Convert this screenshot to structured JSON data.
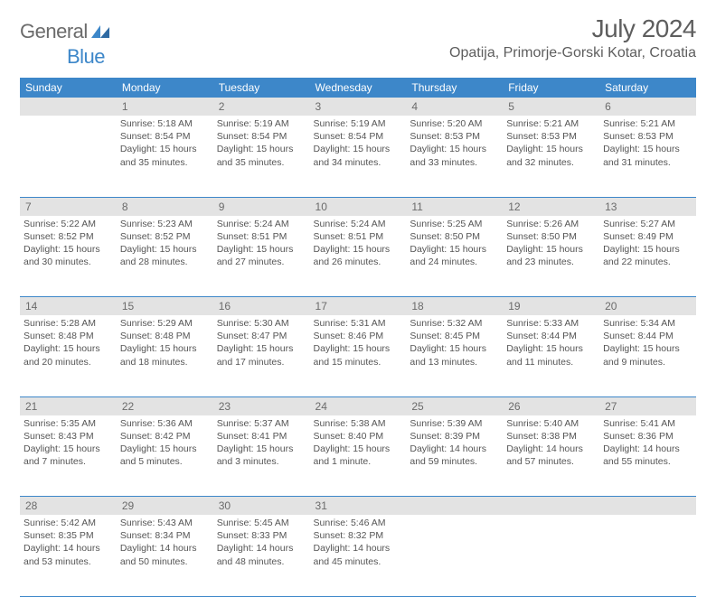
{
  "brand": {
    "word1": "General",
    "word2": "Blue"
  },
  "title": "July 2024",
  "location": "Opatija, Primorje-Gorski Kotar, Croatia",
  "colors": {
    "accent": "#3d87c9",
    "header_bg": "#3d87c9",
    "daynum_bg": "#e3e3e3",
    "text": "#555555",
    "subtle": "#6b6b6b"
  },
  "day_headers": [
    "Sunday",
    "Monday",
    "Tuesday",
    "Wednesday",
    "Thursday",
    "Friday",
    "Saturday"
  ],
  "weeks": [
    {
      "nums": [
        "",
        "1",
        "2",
        "3",
        "4",
        "5",
        "6"
      ],
      "cells": [
        {
          "sunrise": "",
          "sunset": "",
          "daylight": ""
        },
        {
          "sunrise": "Sunrise: 5:18 AM",
          "sunset": "Sunset: 8:54 PM",
          "daylight": "Daylight: 15 hours and 35 minutes."
        },
        {
          "sunrise": "Sunrise: 5:19 AM",
          "sunset": "Sunset: 8:54 PM",
          "daylight": "Daylight: 15 hours and 35 minutes."
        },
        {
          "sunrise": "Sunrise: 5:19 AM",
          "sunset": "Sunset: 8:54 PM",
          "daylight": "Daylight: 15 hours and 34 minutes."
        },
        {
          "sunrise": "Sunrise: 5:20 AM",
          "sunset": "Sunset: 8:53 PM",
          "daylight": "Daylight: 15 hours and 33 minutes."
        },
        {
          "sunrise": "Sunrise: 5:21 AM",
          "sunset": "Sunset: 8:53 PM",
          "daylight": "Daylight: 15 hours and 32 minutes."
        },
        {
          "sunrise": "Sunrise: 5:21 AM",
          "sunset": "Sunset: 8:53 PM",
          "daylight": "Daylight: 15 hours and 31 minutes."
        }
      ]
    },
    {
      "nums": [
        "7",
        "8",
        "9",
        "10",
        "11",
        "12",
        "13"
      ],
      "cells": [
        {
          "sunrise": "Sunrise: 5:22 AM",
          "sunset": "Sunset: 8:52 PM",
          "daylight": "Daylight: 15 hours and 30 minutes."
        },
        {
          "sunrise": "Sunrise: 5:23 AM",
          "sunset": "Sunset: 8:52 PM",
          "daylight": "Daylight: 15 hours and 28 minutes."
        },
        {
          "sunrise": "Sunrise: 5:24 AM",
          "sunset": "Sunset: 8:51 PM",
          "daylight": "Daylight: 15 hours and 27 minutes."
        },
        {
          "sunrise": "Sunrise: 5:24 AM",
          "sunset": "Sunset: 8:51 PM",
          "daylight": "Daylight: 15 hours and 26 minutes."
        },
        {
          "sunrise": "Sunrise: 5:25 AM",
          "sunset": "Sunset: 8:50 PM",
          "daylight": "Daylight: 15 hours and 24 minutes."
        },
        {
          "sunrise": "Sunrise: 5:26 AM",
          "sunset": "Sunset: 8:50 PM",
          "daylight": "Daylight: 15 hours and 23 minutes."
        },
        {
          "sunrise": "Sunrise: 5:27 AM",
          "sunset": "Sunset: 8:49 PM",
          "daylight": "Daylight: 15 hours and 22 minutes."
        }
      ]
    },
    {
      "nums": [
        "14",
        "15",
        "16",
        "17",
        "18",
        "19",
        "20"
      ],
      "cells": [
        {
          "sunrise": "Sunrise: 5:28 AM",
          "sunset": "Sunset: 8:48 PM",
          "daylight": "Daylight: 15 hours and 20 minutes."
        },
        {
          "sunrise": "Sunrise: 5:29 AM",
          "sunset": "Sunset: 8:48 PM",
          "daylight": "Daylight: 15 hours and 18 minutes."
        },
        {
          "sunrise": "Sunrise: 5:30 AM",
          "sunset": "Sunset: 8:47 PM",
          "daylight": "Daylight: 15 hours and 17 minutes."
        },
        {
          "sunrise": "Sunrise: 5:31 AM",
          "sunset": "Sunset: 8:46 PM",
          "daylight": "Daylight: 15 hours and 15 minutes."
        },
        {
          "sunrise": "Sunrise: 5:32 AM",
          "sunset": "Sunset: 8:45 PM",
          "daylight": "Daylight: 15 hours and 13 minutes."
        },
        {
          "sunrise": "Sunrise: 5:33 AM",
          "sunset": "Sunset: 8:44 PM",
          "daylight": "Daylight: 15 hours and 11 minutes."
        },
        {
          "sunrise": "Sunrise: 5:34 AM",
          "sunset": "Sunset: 8:44 PM",
          "daylight": "Daylight: 15 hours and 9 minutes."
        }
      ]
    },
    {
      "nums": [
        "21",
        "22",
        "23",
        "24",
        "25",
        "26",
        "27"
      ],
      "cells": [
        {
          "sunrise": "Sunrise: 5:35 AM",
          "sunset": "Sunset: 8:43 PM",
          "daylight": "Daylight: 15 hours and 7 minutes."
        },
        {
          "sunrise": "Sunrise: 5:36 AM",
          "sunset": "Sunset: 8:42 PM",
          "daylight": "Daylight: 15 hours and 5 minutes."
        },
        {
          "sunrise": "Sunrise: 5:37 AM",
          "sunset": "Sunset: 8:41 PM",
          "daylight": "Daylight: 15 hours and 3 minutes."
        },
        {
          "sunrise": "Sunrise: 5:38 AM",
          "sunset": "Sunset: 8:40 PM",
          "daylight": "Daylight: 15 hours and 1 minute."
        },
        {
          "sunrise": "Sunrise: 5:39 AM",
          "sunset": "Sunset: 8:39 PM",
          "daylight": "Daylight: 14 hours and 59 minutes."
        },
        {
          "sunrise": "Sunrise: 5:40 AM",
          "sunset": "Sunset: 8:38 PM",
          "daylight": "Daylight: 14 hours and 57 minutes."
        },
        {
          "sunrise": "Sunrise: 5:41 AM",
          "sunset": "Sunset: 8:36 PM",
          "daylight": "Daylight: 14 hours and 55 minutes."
        }
      ]
    },
    {
      "nums": [
        "28",
        "29",
        "30",
        "31",
        "",
        "",
        ""
      ],
      "cells": [
        {
          "sunrise": "Sunrise: 5:42 AM",
          "sunset": "Sunset: 8:35 PM",
          "daylight": "Daylight: 14 hours and 53 minutes."
        },
        {
          "sunrise": "Sunrise: 5:43 AM",
          "sunset": "Sunset: 8:34 PM",
          "daylight": "Daylight: 14 hours and 50 minutes."
        },
        {
          "sunrise": "Sunrise: 5:45 AM",
          "sunset": "Sunset: 8:33 PM",
          "daylight": "Daylight: 14 hours and 48 minutes."
        },
        {
          "sunrise": "Sunrise: 5:46 AM",
          "sunset": "Sunset: 8:32 PM",
          "daylight": "Daylight: 14 hours and 45 minutes."
        },
        {
          "sunrise": "",
          "sunset": "",
          "daylight": ""
        },
        {
          "sunrise": "",
          "sunset": "",
          "daylight": ""
        },
        {
          "sunrise": "",
          "sunset": "",
          "daylight": ""
        }
      ]
    }
  ]
}
